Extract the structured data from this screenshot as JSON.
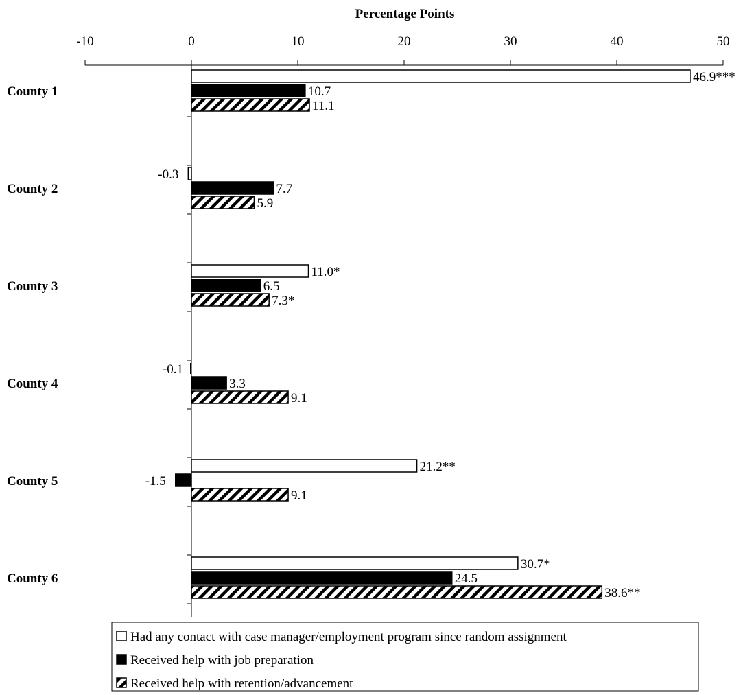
{
  "chart_data": {
    "type": "bar",
    "orientation": "horizontal",
    "xlabel": "Percentage Points",
    "xlim": [
      -10,
      50
    ],
    "xticks": [
      -10,
      0,
      10,
      20,
      30,
      40,
      50
    ],
    "grid": false,
    "legend_position": "bottom",
    "categories": [
      "County 1",
      "County 2",
      "County 3",
      "County 4",
      "County 5",
      "County 6"
    ],
    "series": [
      {
        "name": "Had any contact with case manager/employment program since random assignment",
        "fill": "white",
        "values": [
          46.9,
          -0.3,
          11.0,
          null,
          21.2,
          30.7
        ],
        "labels": [
          "46.9***",
          "-0.3",
          "11.0*",
          "",
          "21.2**",
          "30.7*"
        ]
      },
      {
        "name": "Received help with job preparation",
        "fill": "solid",
        "values": [
          10.7,
          7.7,
          6.5,
          3.3,
          -1.5,
          24.5
        ],
        "labels": [
          "10.7",
          "7.7",
          "6.5",
          "3.3",
          "-1.5",
          "24.5"
        ]
      },
      {
        "name": "Received help with retention/advancement",
        "fill": "hatch",
        "values": [
          11.1,
          5.9,
          7.3,
          9.1,
          9.1,
          38.6
        ],
        "labels": [
          "11.1",
          "5.9",
          "7.3*",
          "9.1",
          "9.1",
          "38.6**"
        ]
      }
    ],
    "annotations": [
      {
        "category": "County 4",
        "text": "-0.1"
      }
    ],
    "colors": {
      "ink": "#000000",
      "background": "#ffffff"
    }
  }
}
